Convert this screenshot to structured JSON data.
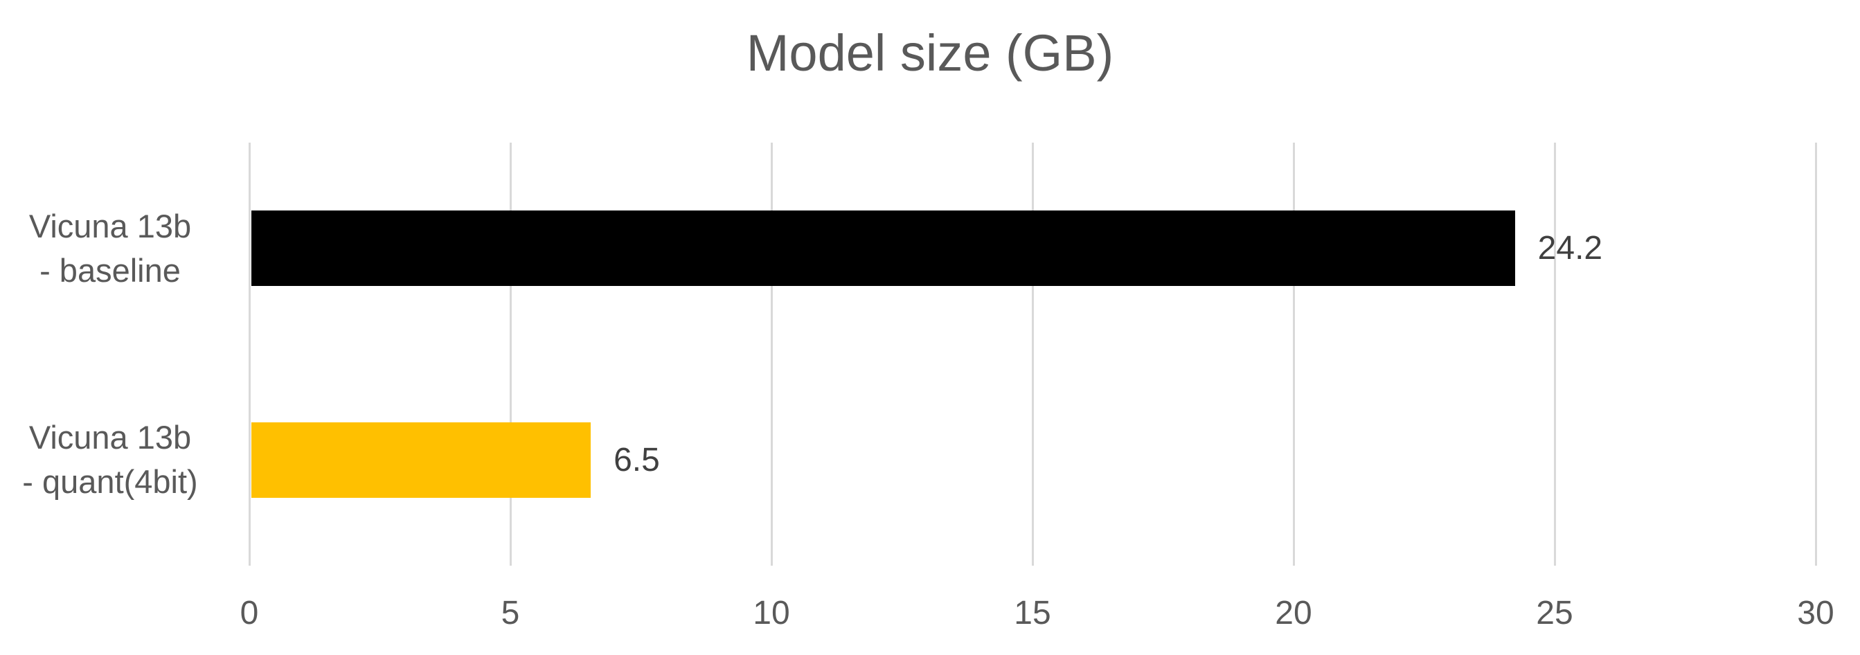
{
  "chart_data": {
    "type": "bar",
    "orientation": "horizontal",
    "title": "Model size (GB)",
    "categories": [
      "Vicuna 13b\n- baseline",
      "Vicuna 13b\n- quant(4bit)"
    ],
    "values": [
      24.2,
      6.5
    ],
    "value_labels": [
      "24.2",
      "6.5"
    ],
    "bar_colors": [
      "#000000",
      "#ffc000"
    ],
    "x_ticks": [
      0,
      5,
      10,
      15,
      20,
      25,
      30
    ],
    "xlim": [
      0,
      30
    ],
    "grid": "vertical-only",
    "legend": "none",
    "colors": {
      "title_text": "#595959",
      "axis_text": "#595959",
      "category_text": "#595959",
      "value_label_text": "#404040",
      "gridline": "#d9d9d9",
      "background": "#ffffff"
    }
  }
}
